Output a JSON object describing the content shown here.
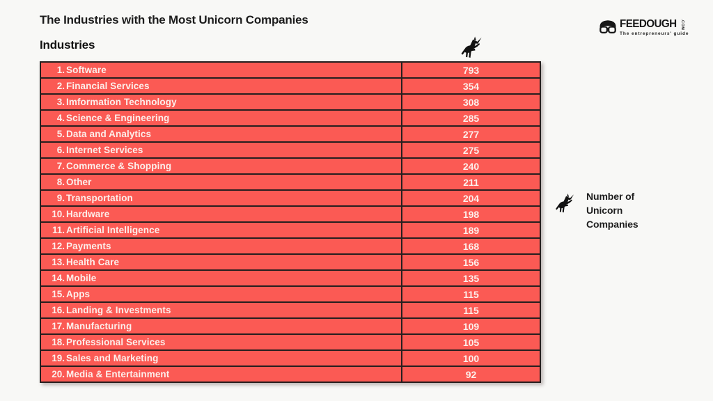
{
  "header": {
    "title": "The Industries with the Most Unicorn Companies",
    "column_header": "Industries"
  },
  "logo": {
    "brand": "FEEDOUGH",
    "tld": ".COM",
    "tagline": "The entrepreneurs' guide"
  },
  "legend": {
    "icon": "unicorn-icon",
    "label": "Number of Unicorn Companies"
  },
  "table": {
    "value_column_icon": "unicorn-icon",
    "row_color": "#FB5A54",
    "border_color": "#261F1F",
    "cell_text_color": "#FCEFEB",
    "rows": [
      {
        "rank": 1,
        "industry": "Software",
        "value": 793
      },
      {
        "rank": 2,
        "industry": "Financial Services",
        "value": 354
      },
      {
        "rank": 3,
        "industry": "Imformation Technology",
        "value": 308
      },
      {
        "rank": 4,
        "industry": "Science & Engineering",
        "value": 285
      },
      {
        "rank": 5,
        "industry": "Data and Analytics",
        "value": 277
      },
      {
        "rank": 6,
        "industry": "Internet Services",
        "value": 275
      },
      {
        "rank": 7,
        "industry": "Commerce & Shopping",
        "value": 240
      },
      {
        "rank": 8,
        "industry": "Other",
        "value": 211
      },
      {
        "rank": 9,
        "industry": "Transportation",
        "value": 204
      },
      {
        "rank": 10,
        "industry": "Hardware",
        "value": 198
      },
      {
        "rank": 11,
        "industry": "Artificial Intelligence",
        "value": 189
      },
      {
        "rank": 12,
        "industry": "Payments",
        "value": 168
      },
      {
        "rank": 13,
        "industry": "Health Care",
        "value": 156
      },
      {
        "rank": 14,
        "industry": "Mobile",
        "value": 135
      },
      {
        "rank": 15,
        "industry": "Apps",
        "value": 115
      },
      {
        "rank": 16,
        "industry": "Landing & Investments",
        "value": 115
      },
      {
        "rank": 17,
        "industry": "Manufacturing",
        "value": 109
      },
      {
        "rank": 18,
        "industry": "Professional Services",
        "value": 105
      },
      {
        "rank": 19,
        "industry": "Sales and Marketing",
        "value": 100
      },
      {
        "rank": 20,
        "industry": "Media & Entertainment",
        "value": 92
      }
    ]
  },
  "chart_data": {
    "type": "table",
    "title": "The Industries with the Most Unicorn Companies",
    "xlabel": "Industries",
    "ylabel": "Number of Unicorn Companies",
    "categories": [
      "Software",
      "Financial Services",
      "Imformation Technology",
      "Science & Engineering",
      "Data and Analytics",
      "Internet Services",
      "Commerce & Shopping",
      "Other",
      "Transportation",
      "Hardware",
      "Artificial Intelligence",
      "Payments",
      "Health Care",
      "Mobile",
      "Apps",
      "Landing & Investments",
      "Manufacturing",
      "Professional Services",
      "Sales and Marketing",
      "Media & Entertainment"
    ],
    "values": [
      793,
      354,
      308,
      285,
      277,
      275,
      240,
      211,
      204,
      198,
      189,
      168,
      156,
      135,
      115,
      115,
      109,
      105,
      100,
      92
    ],
    "legend_position": "right",
    "grid": false
  }
}
